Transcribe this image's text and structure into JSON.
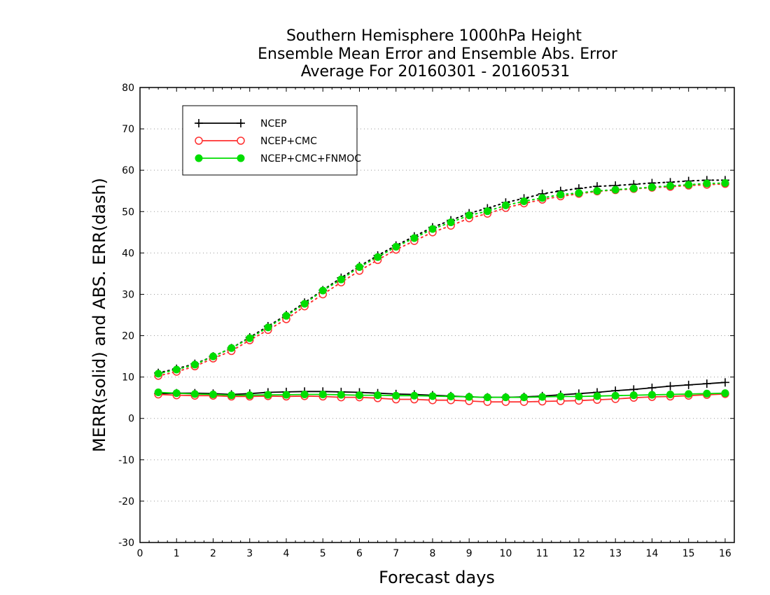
{
  "chart_data": {
    "type": "line",
    "title_lines": [
      "Southern Hemisphere 1000hPa Height",
      "Ensemble Mean Error and Ensemble Abs. Error",
      "Average For 20160301 - 20160531"
    ],
    "xlabel": "Forecast days",
    "ylabel": "MERR(solid) and ABS. ERR(dash)",
    "xlim": [
      0,
      16.25
    ],
    "ylim": [
      -30,
      80
    ],
    "xticks": [
      0,
      1,
      2,
      3,
      4,
      5,
      6,
      7,
      8,
      9,
      10,
      11,
      12,
      13,
      14,
      15,
      16
    ],
    "yticks": [
      -30,
      -20,
      -10,
      0,
      10,
      20,
      30,
      40,
      50,
      60,
      70,
      80
    ],
    "grid": "horizontal dotted",
    "legend_position": "top-left",
    "x": [
      0.5,
      1,
      1.5,
      2,
      2.5,
      3,
      3.5,
      4,
      4.5,
      5,
      5.5,
      6,
      6.5,
      7,
      7.5,
      8,
      8.5,
      9,
      9.5,
      10,
      10.5,
      11,
      11.5,
      12,
      12.5,
      13,
      13.5,
      14,
      14.5,
      15,
      15.5,
      16
    ],
    "series": [
      {
        "name": "NCEP",
        "color": "#000000",
        "marker": "plus",
        "merr": [
          6.0,
          6.1,
          6.1,
          6.0,
          5.8,
          6.0,
          6.3,
          6.4,
          6.5,
          6.5,
          6.4,
          6.3,
          6.1,
          5.9,
          5.8,
          5.6,
          5.4,
          5.2,
          5.1,
          5.1,
          5.2,
          5.4,
          5.7,
          6.0,
          6.3,
          6.7,
          7.0,
          7.4,
          7.8,
          8.1,
          8.4,
          8.7
        ],
        "abs_err": [
          11.0,
          12.0,
          13.2,
          15.0,
          17.0,
          19.6,
          22.3,
          25.0,
          28.0,
          31.0,
          34.0,
          36.8,
          39.4,
          41.8,
          44.0,
          46.2,
          47.9,
          49.6,
          50.8,
          52.2,
          53.2,
          54.3,
          55.0,
          55.6,
          56.1,
          56.3,
          56.6,
          56.9,
          57.1,
          57.4,
          57.6,
          57.6
        ]
      },
      {
        "name": "NCEP+CMC",
        "color": "#ff3030",
        "marker": "open-circle",
        "merr": [
          5.8,
          5.6,
          5.5,
          5.5,
          5.3,
          5.3,
          5.4,
          5.3,
          5.4,
          5.3,
          5.1,
          5.1,
          4.9,
          4.6,
          4.6,
          4.4,
          4.4,
          4.2,
          4.0,
          4.0,
          4.0,
          4.1,
          4.2,
          4.3,
          4.5,
          4.7,
          5.0,
          5.2,
          5.3,
          5.5,
          5.7,
          5.9
        ],
        "abs_err": [
          10.3,
          11.3,
          12.6,
          14.5,
          16.3,
          18.9,
          21.4,
          24.0,
          27.1,
          30.0,
          32.9,
          35.7,
          38.3,
          40.8,
          42.9,
          45.0,
          46.6,
          48.4,
          49.5,
          50.9,
          52.0,
          52.9,
          53.7,
          54.3,
          54.9,
          55.2,
          55.5,
          55.8,
          56.0,
          56.3,
          56.5,
          56.7
        ]
      },
      {
        "name": "NCEP+CMC+FNMOC",
        "color": "#00dd00",
        "marker": "filled-circle",
        "merr": [
          6.3,
          6.1,
          5.9,
          5.8,
          5.6,
          5.6,
          5.7,
          5.7,
          5.8,
          5.8,
          5.7,
          5.6,
          5.6,
          5.5,
          5.5,
          5.4,
          5.3,
          5.2,
          5.1,
          5.1,
          5.1,
          5.2,
          5.3,
          5.3,
          5.4,
          5.5,
          5.6,
          5.7,
          5.8,
          5.9,
          6.0,
          6.1
        ],
        "abs_err": [
          10.8,
          11.8,
          13.0,
          15.0,
          17.0,
          19.4,
          22.0,
          24.8,
          27.7,
          30.9,
          33.6,
          36.6,
          39.0,
          41.5,
          43.6,
          45.8,
          47.4,
          49.1,
          50.1,
          51.5,
          52.5,
          53.3,
          54.1,
          54.5,
          55.0,
          55.3,
          55.6,
          55.9,
          56.2,
          56.5,
          56.8,
          56.9
        ]
      }
    ]
  }
}
